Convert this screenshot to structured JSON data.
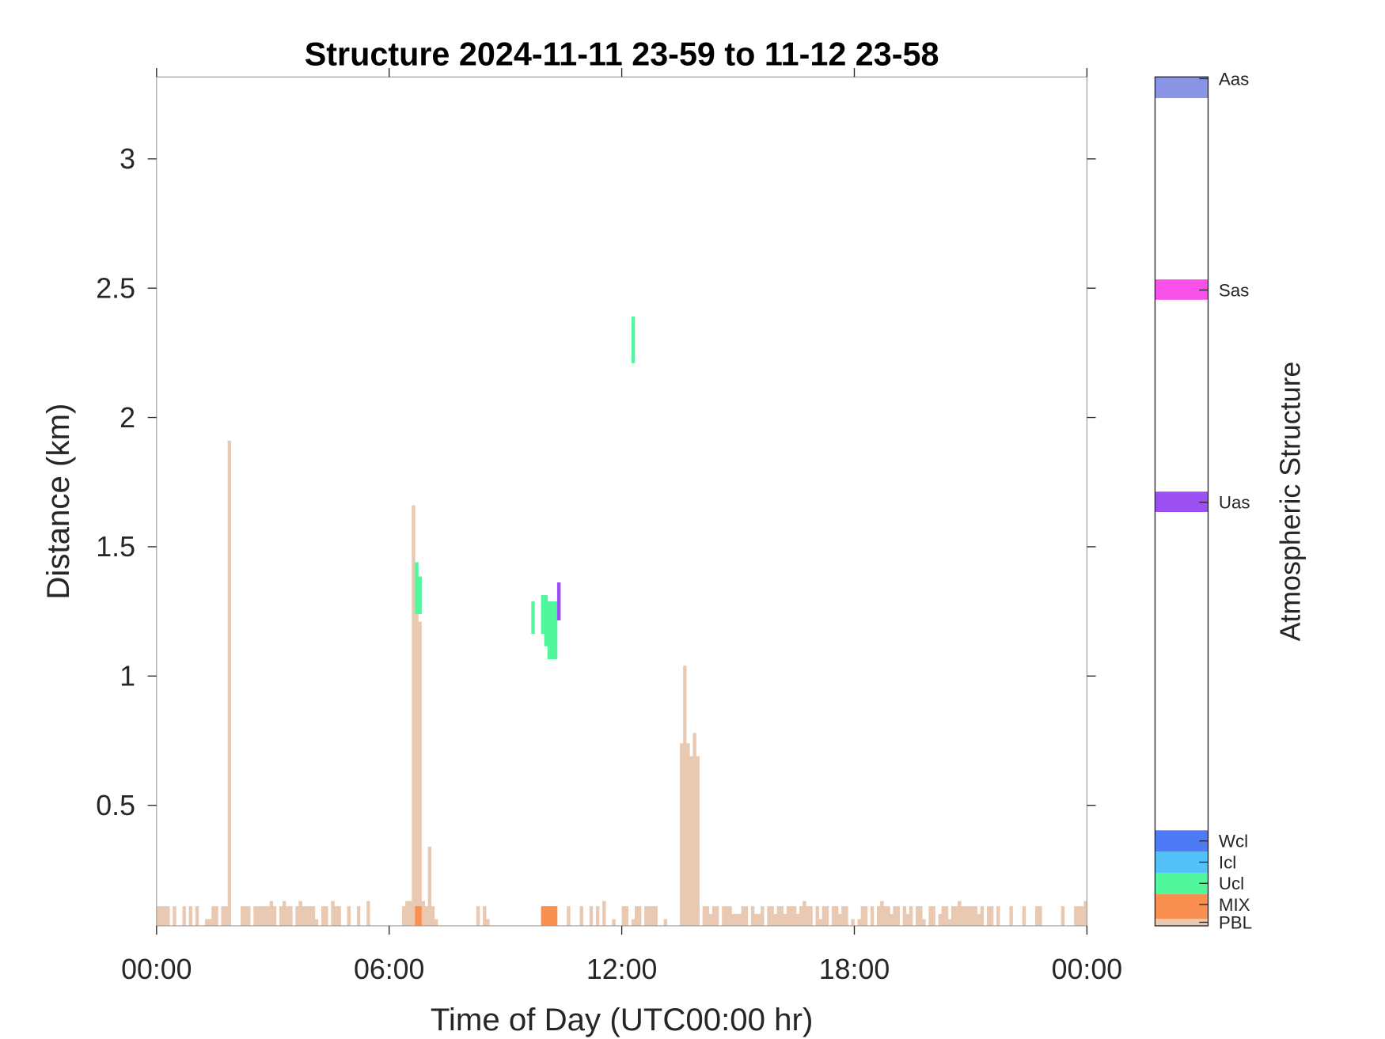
{
  "chart_data": {
    "type": "bar",
    "title": "Structure 2024-11-11 23-59 to 11-12 23-58",
    "xlabel": "Time of Day (UTC00:00 hr)",
    "ylabel": "Distance (km)",
    "xlim_hours": [
      0,
      24
    ],
    "ylim": [
      0.034,
      3.317
    ],
    "x_ticks": [
      {
        "hour": 0,
        "label": "00:00"
      },
      {
        "hour": 6,
        "label": "06:00"
      },
      {
        "hour": 12,
        "label": "12:00"
      },
      {
        "hour": 18,
        "label": "18:00"
      },
      {
        "hour": 24,
        "label": "00:00"
      }
    ],
    "y_ticks": [
      {
        "value": 0.5,
        "label": "0.5"
      },
      {
        "value": 1,
        "label": "1"
      },
      {
        "value": 1.5,
        "label": "1.5"
      },
      {
        "value": 2,
        "label": "2"
      },
      {
        "value": 2.5,
        "label": "2.5"
      },
      {
        "value": 3,
        "label": "3"
      }
    ],
    "grid": false,
    "bin_minutes": 5,
    "pbl_top_km": [
      0.11,
      0.11,
      0.11,
      0.11,
      0,
      0.11,
      0,
      0,
      0.11,
      0,
      0.11,
      0,
      0.11,
      0,
      0,
      0.06,
      0.06,
      0.11,
      0.11,
      0,
      0.11,
      0.11,
      1.91,
      0,
      0,
      0,
      0.11,
      0.11,
      0.11,
      0,
      0.11,
      0.11,
      0.11,
      0.11,
      0.11,
      0.13,
      0.11,
      0,
      0.11,
      0.13,
      0.11,
      0.11,
      0,
      0.11,
      0.13,
      0.11,
      0.11,
      0.11,
      0.11,
      0.06,
      0,
      0.11,
      0.11,
      0,
      0.13,
      0.11,
      0.11,
      0,
      0,
      0.11,
      0,
      0,
      0.11,
      0,
      0,
      0.13,
      0,
      0,
      0,
      0,
      0,
      0,
      0,
      0,
      0,
      0,
      0.11,
      0.13,
      0.13,
      1.66,
      1.24,
      1.21,
      0.13,
      0.11,
      0.34,
      0.11,
      0.06,
      0,
      0,
      0,
      0,
      0,
      0,
      0,
      0,
      0,
      0,
      0,
      0,
      0.11,
      0,
      0.11,
      0.06,
      0,
      0,
      0,
      0,
      0,
      0,
      0,
      0,
      0,
      0,
      0,
      0,
      0,
      0,
      0,
      0,
      0,
      0,
      0,
      0,
      0,
      0,
      0,
      0,
      0.11,
      0,
      0,
      0,
      0.11,
      0,
      0,
      0.11,
      0,
      0.11,
      0,
      0.13,
      0,
      0,
      0.06,
      0,
      0,
      0.11,
      0.11,
      0,
      0.06,
      0.11,
      0.11,
      0,
      0.11,
      0.11,
      0.11,
      0.11,
      0,
      0,
      0.06,
      0,
      0,
      0,
      0,
      0.74,
      1.04,
      0.74,
      0.69,
      0.78,
      0.69,
      0,
      0.11,
      0.11,
      0.08,
      0.11,
      0.11,
      0,
      0.11,
      0.11,
      0.11,
      0.08,
      0.08,
      0.08,
      0.11,
      0.11,
      0,
      0.11,
      0.08,
      0.08,
      0.11,
      0,
      0.11,
      0.11,
      0.08,
      0.11,
      0.11,
      0.08,
      0.11,
      0.11,
      0.11,
      0.08,
      0.11,
      0.13,
      0.11,
      0.11,
      0,
      0.11,
      0.06,
      0.11,
      0.11,
      0,
      0.11,
      0.11,
      0.08,
      0.11,
      0.11,
      0,
      0.06,
      0,
      0.06,
      0.11,
      0.11,
      0,
      0.11,
      0,
      0.11,
      0.13,
      0.11,
      0.11,
      0.08,
      0.11,
      0.11,
      0,
      0.11,
      0.08,
      0.11,
      0,
      0.11,
      0.11,
      0.06,
      0,
      0.11,
      0.11,
      0,
      0.08,
      0.11,
      0.11,
      0.06,
      0.11,
      0.11,
      0.13,
      0.11,
      0.11,
      0.11,
      0.11,
      0.11,
      0.08,
      0.11,
      0,
      0.11,
      0.11,
      0,
      0.11,
      0,
      0,
      0,
      0.11,
      0,
      0,
      0,
      0.11,
      0,
      0,
      0,
      0.11,
      0.11,
      0,
      0,
      0,
      0,
      0,
      0,
      0.11,
      0,
      0,
      0,
      0.11,
      0.11,
      0.11,
      0.13
    ],
    "layers": [
      {
        "class": "MIX",
        "start_hour": 6.667,
        "end_hour": 6.833,
        "bottom_km": 0.034,
        "top_km": 0.11
      },
      {
        "class": "MIX",
        "start_hour": 9.917,
        "end_hour": 10.333,
        "bottom_km": 0.034,
        "top_km": 0.11
      },
      {
        "class": "Ucl",
        "start_hour": 6.667,
        "end_hour": 6.75,
        "bottom_km": 1.24,
        "top_km": 1.44
      },
      {
        "class": "Ucl",
        "start_hour": 6.75,
        "end_hour": 6.833,
        "bottom_km": 1.24,
        "top_km": 1.385
      },
      {
        "class": "Ucl",
        "start_hour": 9.667,
        "end_hour": 9.75,
        "bottom_km": 1.163,
        "top_km": 1.289
      },
      {
        "class": "Ucl",
        "start_hour": 9.917,
        "end_hour": 10.0,
        "bottom_km": 1.163,
        "top_km": 1.313
      },
      {
        "class": "Ucl",
        "start_hour": 10.0,
        "end_hour": 10.083,
        "bottom_km": 1.115,
        "top_km": 1.313
      },
      {
        "class": "Ucl",
        "start_hour": 10.083,
        "end_hour": 10.333,
        "bottom_km": 1.065,
        "top_km": 1.289
      },
      {
        "class": "Uas",
        "start_hour": 10.333,
        "end_hour": 10.417,
        "bottom_km": 1.215,
        "top_km": 1.362
      },
      {
        "class": "Ucl",
        "start_hour": 12.25,
        "end_hour": 12.333,
        "bottom_km": 2.21,
        "top_km": 2.39
      }
    ],
    "colorbar": {
      "title": "Atmospheric Structure",
      "categories": [
        {
          "label": "PBL",
          "color": "#e9c9b2"
        },
        {
          "label": "MIX",
          "color": "#fa8f52"
        },
        {
          "label": "Ucl",
          "color": "#50f79d"
        },
        {
          "label": "Icl",
          "color": "#50c2f7"
        },
        {
          "label": "Wcl",
          "color": "#4f7af6"
        },
        {
          "label": "Uas",
          "color": "#9d50f2"
        },
        {
          "label": "Sas",
          "color": "#f950e9"
        },
        {
          "label": "Aas",
          "color": "#8a95e5"
        }
      ]
    }
  }
}
